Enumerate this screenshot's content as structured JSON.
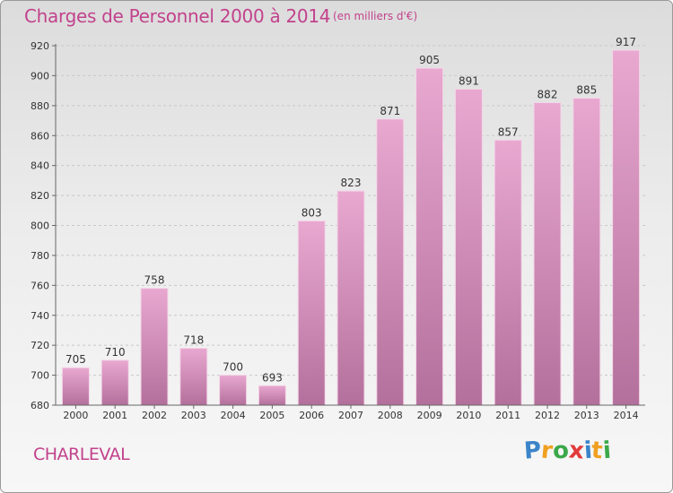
{
  "title": "Charges de Personnel 2000 à 2014",
  "subtitle": "(en milliers d'€)",
  "place": "CHARLEVAL",
  "logo": {
    "letters": [
      {
        "ch": "P",
        "color": "#3b84c9"
      },
      {
        "ch": "r",
        "color": "#f0a020"
      },
      {
        "ch": "o",
        "color": "#3ba84a"
      },
      {
        "ch": "x",
        "color": "#e23b3b"
      },
      {
        "ch": "i",
        "color": "#3b84c9"
      },
      {
        "ch": "t",
        "color": "#f0a020"
      },
      {
        "ch": "i",
        "color": "#3ba84a"
      }
    ]
  },
  "chart_data": {
    "type": "bar",
    "title": "Charges de Personnel 2000 à 2014",
    "subtitle": "(en milliers d'€)",
    "categories": [
      "2000",
      "2001",
      "2002",
      "2003",
      "2004",
      "2005",
      "2006",
      "2007",
      "2008",
      "2009",
      "2010",
      "2011",
      "2012",
      "2013",
      "2014"
    ],
    "values": [
      705,
      710,
      758,
      718,
      700,
      693,
      803,
      823,
      871,
      905,
      891,
      857,
      882,
      885,
      917
    ],
    "ylim": [
      680,
      920
    ],
    "yticks": [
      680,
      700,
      720,
      740,
      760,
      780,
      800,
      820,
      840,
      860,
      880,
      900,
      920
    ],
    "grid": true,
    "bar_color_top": "#e8a8d0",
    "bar_color_bottom": "#b4709c",
    "label_color": "#333333"
  }
}
